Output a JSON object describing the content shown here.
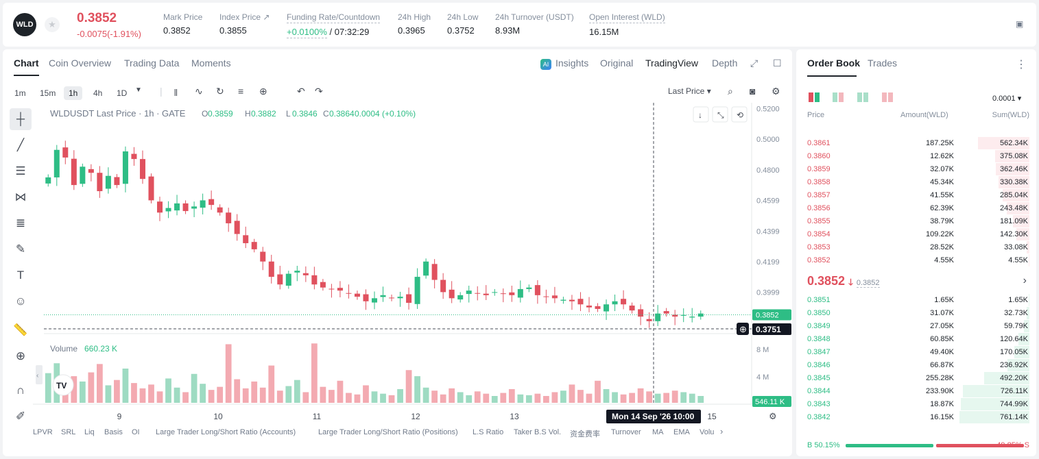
{
  "header": {
    "logo": "WLD",
    "price": "0.3852",
    "change": "-0.0075(-1.91%)",
    "stats": [
      {
        "label": "Mark Price",
        "value": "0.3852"
      },
      {
        "label": "Index Price ↗",
        "value": "0.3855"
      },
      {
        "label": "Funding Rate/Countdown",
        "value_a": "+0.0100%",
        "value_b": "/ 07:32:29"
      },
      {
        "label": "24h High",
        "value": "0.3965"
      },
      {
        "label": "24h Low",
        "value": "0.3752"
      },
      {
        "label": "24h Turnover (USDT)",
        "value": "8.93M"
      },
      {
        "label": "Open Interest (WLD)",
        "value": "16.15M"
      }
    ]
  },
  "chart_tabs": [
    "Chart",
    "Coin Overview",
    "Trading Data",
    "Moments"
  ],
  "chart_right_tabs": [
    "Insights",
    "Original",
    "TradingView",
    "Depth"
  ],
  "timeframes": [
    "1m",
    "15m",
    "1h",
    "4h",
    "1D"
  ],
  "price_type": "Last Price",
  "legend": {
    "title": "WLDUSDT Last Price · 1h · GATE",
    "o": "0.3859",
    "h": "0.3882",
    "l": "0.3846",
    "c": "0.3864",
    "chg": "0.0004 (+0.10%)"
  },
  "volume_label": "Volume",
  "volume_value": "660.23 K",
  "chart_data": {
    "type": "candlestick",
    "y_ticks": [
      "0.5200",
      "0.5000",
      "0.4800",
      "0.4599",
      "0.4399",
      "0.4199",
      "0.3999"
    ],
    "x_ticks": [
      "9",
      "10",
      "11",
      "12",
      "13",
      "15"
    ],
    "last_price_label": "0.3852",
    "cross_price_label": "0.3751",
    "cross_time_label": "Mon 14 Sep '26   10:00",
    "volume_ticks": [
      "8 M",
      "4 M"
    ],
    "volume_last": "546.11 K",
    "close_path": [
      0.475,
      0.493,
      0.488,
      0.47,
      0.482,
      0.478,
      0.466,
      0.476,
      0.47,
      0.492,
      0.487,
      0.474,
      0.46,
      0.452,
      0.455,
      0.458,
      0.453,
      0.456,
      0.46,
      0.457,
      0.452,
      0.445,
      0.438,
      0.432,
      0.428,
      0.42,
      0.41,
      0.405,
      0.412,
      0.414,
      0.411,
      0.405,
      0.403,
      0.402,
      0.401,
      0.399,
      0.397,
      0.394,
      0.396,
      0.398,
      0.396,
      0.397,
      0.393,
      0.41,
      0.42,
      0.408,
      0.4,
      0.396,
      0.398,
      0.401,
      0.399,
      0.398,
      0.4,
      0.399,
      0.398,
      0.402,
      0.403,
      0.398,
      0.397,
      0.396,
      0.395,
      0.394,
      0.392,
      0.39,
      0.389,
      0.392,
      0.394,
      0.392,
      0.388,
      0.384,
      0.381,
      0.386,
      0.386,
      0.384,
      0.385,
      0.384,
      0.386
    ],
    "volume_path": [
      3.9,
      5.2,
      2.0,
      3.5,
      2.8,
      4.0,
      5.1,
      2.3,
      3.0,
      4.5,
      2.6,
      1.9,
      2.4,
      1.5,
      3.2,
      2.0,
      1.4,
      3.8,
      2.5,
      1.7,
      2.1,
      7.7,
      3.1,
      1.9,
      2.8,
      2.0,
      4.9,
      1.6,
      2.2,
      3.0,
      1.4,
      7.8,
      2.1,
      1.7,
      2.9,
      1.3,
      1.1,
      2.3,
      1.5,
      1.2,
      1.0,
      1.8,
      4.3,
      3.5,
      2.0,
      1.6,
      1.1,
      1.9,
      1.4,
      1.0,
      1.5,
      1.2,
      0.9,
      1.3,
      1.8,
      1.1,
      1.0,
      1.2,
      0.9,
      1.4,
      1.6,
      2.4,
      1.7,
      1.2,
      2.9,
      1.8,
      1.4,
      1.1,
      1.3,
      1.9,
      1.5,
      1.2,
      1.3,
      1.6,
      1.4,
      1.2,
      0.9
    ]
  },
  "bottom_bar": [
    "LPVR",
    "SRL",
    "Liq",
    "Basis",
    "OI",
    "Large Trader Long/Short Ratio (Accounts)",
    "Large Trader Long/Short Ratio (Positions)",
    "L.S Ratio",
    "Taker B.S Vol.",
    "资金费率",
    "Turnover",
    "MA",
    "EMA",
    "Volu"
  ],
  "orderbook": {
    "tabs": [
      "Order Book",
      "Trades"
    ],
    "precision": "0.0001",
    "cols": [
      "Price",
      "Amount(WLD)",
      "Sum(WLD)"
    ],
    "asks": [
      {
        "p": "0.3861",
        "a": "187.25K",
        "s": "562.34K",
        "d": 0.74
      },
      {
        "p": "0.3860",
        "a": "12.62K",
        "s": "375.08K",
        "d": 0.49
      },
      {
        "p": "0.3859",
        "a": "32.07K",
        "s": "362.46K",
        "d": 0.48
      },
      {
        "p": "0.3858",
        "a": "45.34K",
        "s": "330.38K",
        "d": 0.44
      },
      {
        "p": "0.3857",
        "a": "41.55K",
        "s": "285.04K",
        "d": 0.38
      },
      {
        "p": "0.3856",
        "a": "62.39K",
        "s": "243.48K",
        "d": 0.32
      },
      {
        "p": "0.3855",
        "a": "38.79K",
        "s": "181.09K",
        "d": 0.24
      },
      {
        "p": "0.3854",
        "a": "109.22K",
        "s": "142.30K",
        "d": 0.19
      },
      {
        "p": "0.3853",
        "a": "28.52K",
        "s": "33.08K",
        "d": 0.04
      },
      {
        "p": "0.3852",
        "a": "4.55K",
        "s": "4.55K",
        "d": 0.01
      }
    ],
    "mid": "0.3852",
    "mid_mark": "0.3852",
    "bids": [
      {
        "p": "0.3851",
        "a": "1.65K",
        "s": "1.65K",
        "d": 0.01
      },
      {
        "p": "0.3850",
        "a": "31.07K",
        "s": "32.73K",
        "d": 0.04
      },
      {
        "p": "0.3849",
        "a": "27.05K",
        "s": "59.79K",
        "d": 0.08
      },
      {
        "p": "0.3848",
        "a": "60.85K",
        "s": "120.64K",
        "d": 0.16
      },
      {
        "p": "0.3847",
        "a": "49.40K",
        "s": "170.05K",
        "d": 0.22
      },
      {
        "p": "0.3846",
        "a": "66.87K",
        "s": "236.92K",
        "d": 0.31
      },
      {
        "p": "0.3845",
        "a": "255.28K",
        "s": "492.20K",
        "d": 0.65
      },
      {
        "p": "0.3844",
        "a": "233.90K",
        "s": "726.11K",
        "d": 0.95
      },
      {
        "p": "0.3843",
        "a": "18.87K",
        "s": "744.99K",
        "d": 0.98
      },
      {
        "p": "0.3842",
        "a": "16.15K",
        "s": "761.14K",
        "d": 1.0
      }
    ],
    "buy_ratio": "B 50.15%",
    "sell_ratio": "49.85% S",
    "buy_frac": 0.5015
  }
}
